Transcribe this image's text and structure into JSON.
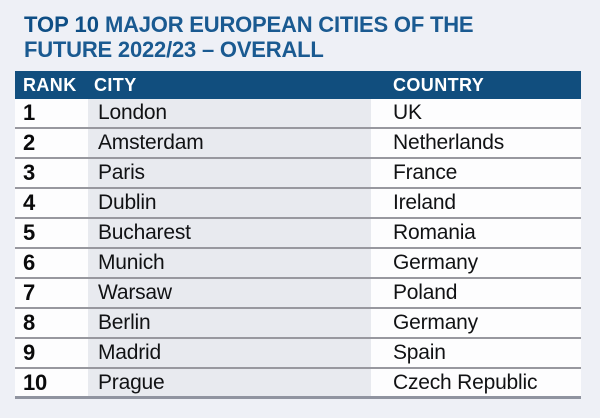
{
  "title": {
    "bold": "TOP 10",
    "line1_rest": "MAJOR EUROPEAN CITIES OF THE",
    "line2": "FUTURE 2022/23 – OVERALL"
  },
  "colors": {
    "header_bar_blue": "#114e7e",
    "title_blue_bold": "#0e4e85",
    "title_blue": "#1a5a91",
    "city_column_bg": "#e8eaef",
    "row_bg": "#fdfdfe",
    "separator_gray": "#98989f",
    "page_bg": "#eef0f6"
  },
  "chart_data": {
    "type": "table",
    "title": "TOP 10 MAJOR EUROPEAN CITIES OF THE FUTURE 2022/23 – OVERALL",
    "columns": [
      "RANK",
      "CITY",
      "COUNTRY"
    ],
    "rows": [
      [
        "1",
        "London",
        "UK"
      ],
      [
        "2",
        "Amsterdam",
        "Netherlands"
      ],
      [
        "3",
        "Paris",
        "France"
      ],
      [
        "4",
        "Dublin",
        "Ireland"
      ],
      [
        "5",
        "Bucharest",
        "Romania"
      ],
      [
        "6",
        "Munich",
        "Germany"
      ],
      [
        "7",
        "Warsaw",
        "Poland"
      ],
      [
        "8",
        "Berlin",
        "Germany"
      ],
      [
        "9",
        "Madrid",
        "Spain"
      ],
      [
        "10",
        "Prague",
        "Czech Republic"
      ]
    ]
  }
}
